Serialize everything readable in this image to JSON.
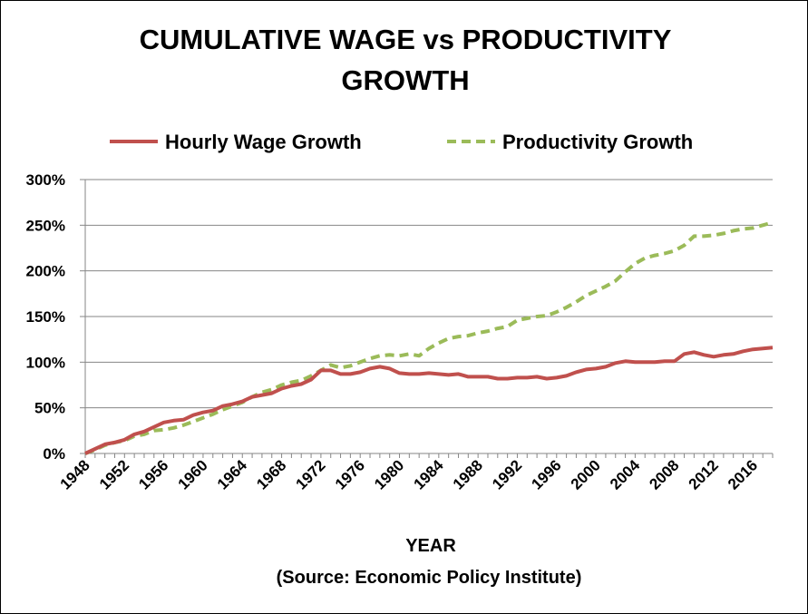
{
  "chart_data": {
    "type": "line",
    "title_lines": [
      "CUMULATIVE WAGE vs PRODUCTIVITY",
      "GROWTH"
    ],
    "xlabel": "YEAR",
    "source": "(Source:  Economic Policy Institute)",
    "x": [
      1948,
      1949,
      1950,
      1951,
      1952,
      1953,
      1954,
      1955,
      1956,
      1957,
      1958,
      1959,
      1960,
      1961,
      1962,
      1963,
      1964,
      1965,
      1966,
      1967,
      1968,
      1969,
      1970,
      1971,
      1972,
      1973,
      1974,
      1975,
      1976,
      1977,
      1978,
      1979,
      1980,
      1981,
      1982,
      1983,
      1984,
      1985,
      1986,
      1987,
      1988,
      1989,
      1990,
      1991,
      1992,
      1993,
      1994,
      1995,
      1996,
      1997,
      1998,
      1999,
      2000,
      2001,
      2002,
      2003,
      2004,
      2005,
      2006,
      2007,
      2008,
      2009,
      2010,
      2011,
      2012,
      2013,
      2014,
      2015,
      2016,
      2017,
      2018
    ],
    "x_tick_labels": [
      "1948",
      "1952",
      "1956",
      "1960",
      "1964",
      "1968",
      "1972",
      "1976",
      "1980",
      "1984",
      "1988",
      "1992",
      "1996",
      "2000",
      "2004",
      "2008",
      "2012",
      "2016"
    ],
    "x_tick_values": [
      1948,
      1952,
      1956,
      1960,
      1964,
      1968,
      1972,
      1976,
      1980,
      1984,
      1988,
      1992,
      1996,
      2000,
      2004,
      2008,
      2012,
      2016
    ],
    "xlim": [
      1948,
      2018
    ],
    "y_tick_labels": [
      "0%",
      "50%",
      "100%",
      "150%",
      "200%",
      "250%",
      "300%"
    ],
    "y_tick_values": [
      0,
      50,
      100,
      150,
      200,
      250,
      300
    ],
    "ylim": [
      0,
      300
    ],
    "grid": true,
    "legend_position": "top",
    "series": [
      {
        "name": "Hourly Wage Growth",
        "color": "#C0504D",
        "style": "solid",
        "values": [
          0,
          5,
          10,
          12,
          15,
          21,
          24,
          29,
          34,
          36,
          37,
          42,
          45,
          47,
          52,
          54,
          57,
          62,
          64,
          66,
          71,
          74,
          76,
          81,
          91,
          91,
          87,
          87,
          89,
          93,
          95,
          93,
          88,
          87,
          87,
          88,
          87,
          86,
          87,
          84,
          84,
          84,
          82,
          82,
          83,
          83,
          84,
          82,
          83,
          85,
          89,
          92,
          93,
          95,
          99,
          101,
          100,
          100,
          100,
          101,
          101,
          109,
          111,
          108,
          106,
          108,
          109,
          112,
          114,
          115,
          116
        ]
      },
      {
        "name": "Productivity Growth",
        "color": "#9BBB59",
        "style": "dashed",
        "values": [
          0,
          4,
          9,
          12,
          14,
          19,
          21,
          25,
          26,
          28,
          31,
          35,
          39,
          43,
          48,
          52,
          56,
          62,
          67,
          70,
          75,
          78,
          80,
          85,
          91,
          97,
          94,
          96,
          100,
          104,
          107,
          108,
          107,
          109,
          107,
          115,
          121,
          126,
          128,
          129,
          132,
          134,
          137,
          139,
          146,
          148,
          150,
          151,
          155,
          160,
          166,
          173,
          178,
          183,
          189,
          199,
          208,
          214,
          217,
          219,
          222,
          228,
          238,
          238,
          239,
          241,
          244,
          246,
          247,
          250,
          253
        ]
      }
    ]
  }
}
